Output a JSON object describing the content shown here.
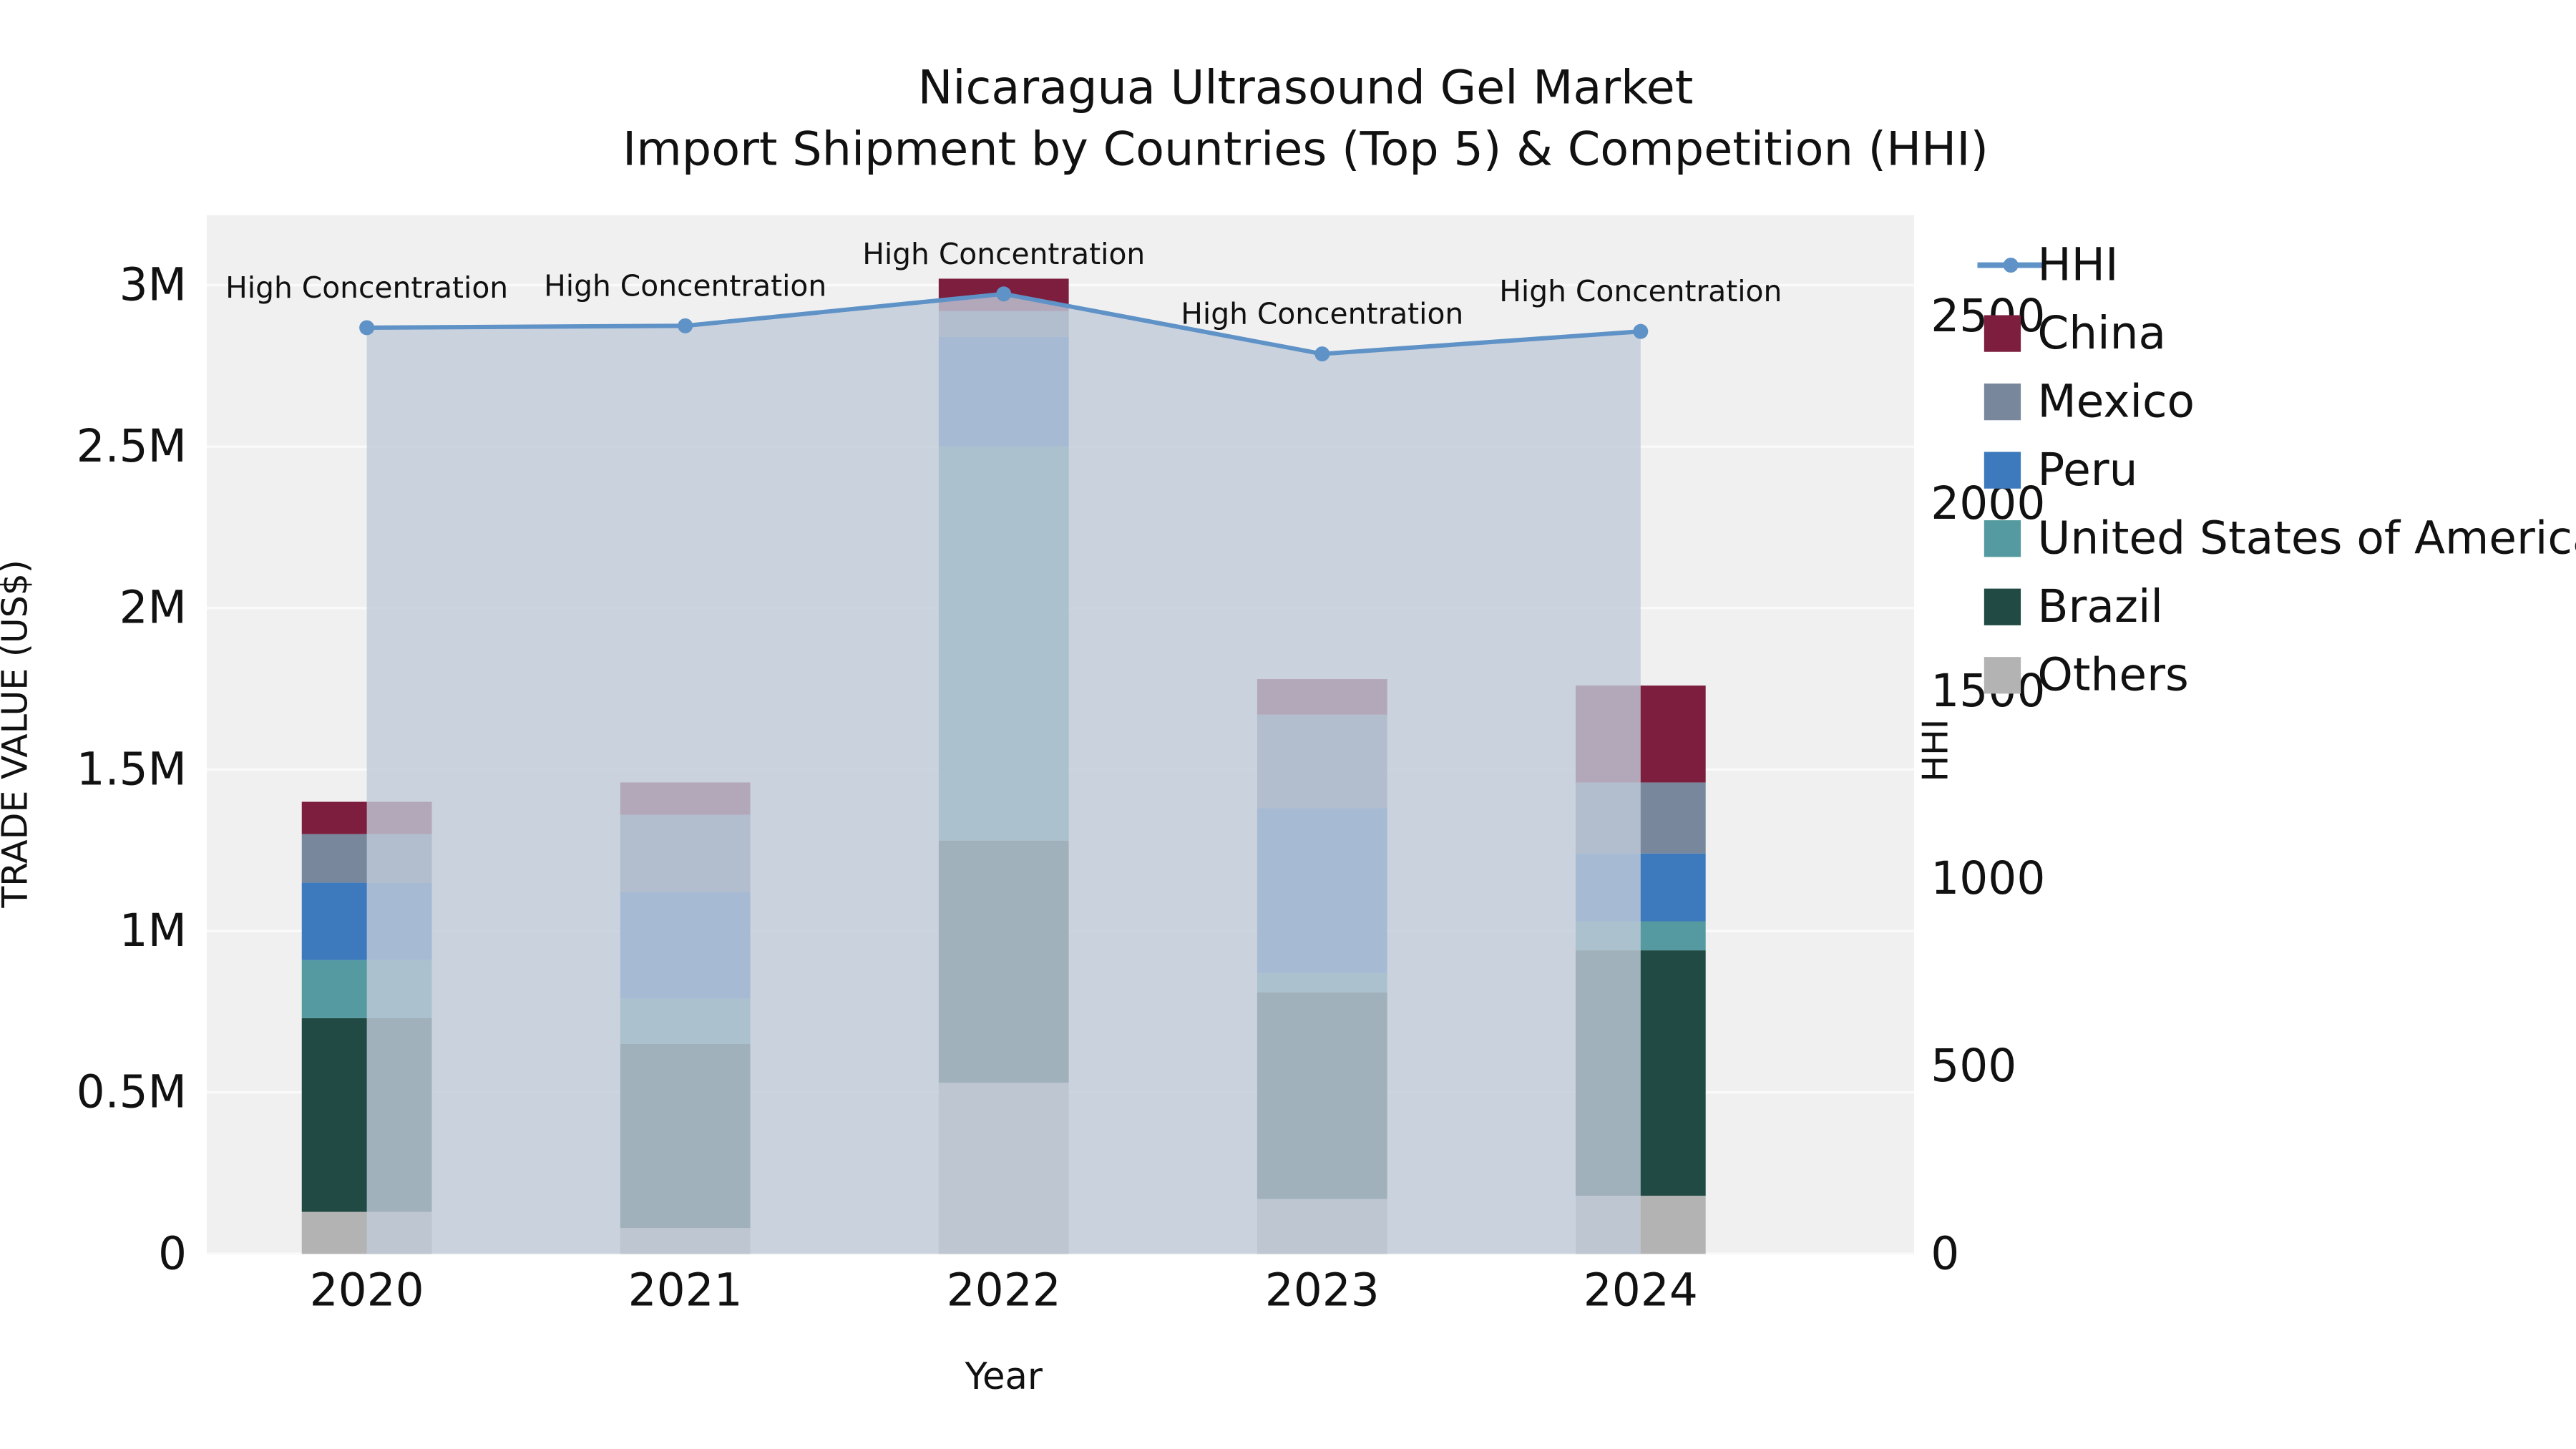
{
  "chart_data": {
    "type": "bar",
    "title": "Nicaragua Ultrasound Gel Market",
    "subtitle": "Import Shipment by Countries (Top 5) & Competition (HHI)",
    "xlabel": "Year",
    "ylabel_left": "TRADE VALUE (US$)",
    "ylabel_right": "HHI",
    "categories": [
      "2020",
      "2021",
      "2022",
      "2023",
      "2024"
    ],
    "series": [
      {
        "name": "Others",
        "color": "#b3b3b3",
        "values": [
          0.13,
          0.08,
          0.53,
          0.17,
          0.18
        ]
      },
      {
        "name": "Brazil",
        "color": "#214a45",
        "values": [
          0.6,
          0.57,
          0.75,
          0.64,
          0.76
        ]
      },
      {
        "name": "United States of America",
        "color": "#559aa0",
        "values": [
          0.18,
          0.14,
          1.22,
          0.06,
          0.09
        ]
      },
      {
        "name": "Peru",
        "color": "#3d79bd",
        "values": [
          0.24,
          0.33,
          0.34,
          0.51,
          0.21
        ]
      },
      {
        "name": "Mexico",
        "color": "#78879c",
        "values": [
          0.15,
          0.24,
          0.08,
          0.29,
          0.22
        ]
      },
      {
        "name": "China",
        "color": "#7e1e3e",
        "values": [
          0.1,
          0.1,
          0.1,
          0.11,
          0.3
        ]
      }
    ],
    "hhi": {
      "name": "HHI",
      "line_color": "#5f92c6",
      "area_fill": "rgba(193,203,217,0.8)",
      "values": [
        2470,
        2475,
        2560,
        2400,
        2460
      ]
    },
    "annotations": [
      "High Concentration",
      "High Concentration",
      "High Concentration",
      "High Concentration",
      "High Concentration"
    ],
    "left_axis": {
      "tick_labels": [
        "0",
        "0.5M",
        "1M",
        "1.5M",
        "2M",
        "2.5M",
        "3M"
      ],
      "tick_values": [
        0,
        0.5,
        1,
        1.5,
        2,
        2.5,
        3
      ],
      "units_per_px": "M USD"
    },
    "right_axis": {
      "tick_labels": [
        "0",
        "500",
        "1000",
        "1500",
        "2000",
        "2500"
      ],
      "tick_values": [
        0,
        500,
        1000,
        1500,
        2000,
        2500
      ]
    },
    "legend": [
      {
        "label": "HHI",
        "type": "line",
        "color": "#5f92c6"
      },
      {
        "label": "China",
        "type": "swatch",
        "color": "#7e1e3e"
      },
      {
        "label": "Mexico",
        "type": "swatch",
        "color": "#78879c"
      },
      {
        "label": "Peru",
        "type": "swatch",
        "color": "#3d79bd"
      },
      {
        "label": "United States of America",
        "type": "swatch",
        "color": "#559aa0"
      },
      {
        "label": "Brazil",
        "type": "swatch",
        "color": "#214a45"
      },
      {
        "label": "Others",
        "type": "swatch",
        "color": "#b3b3b3"
      }
    ],
    "plot_bg": "#f0f0f0",
    "grid_color": "#fafafa"
  }
}
